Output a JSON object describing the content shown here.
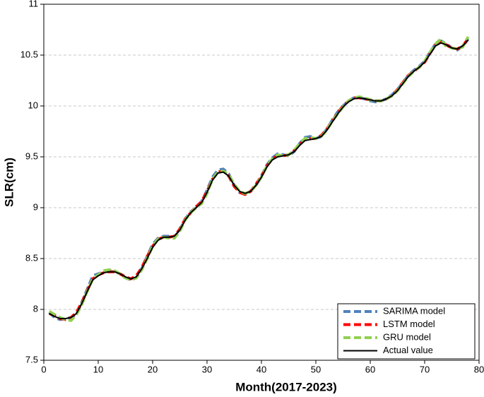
{
  "chart_data": {
    "type": "line",
    "x_label": "Month(2017-2023)",
    "y_label": "SLR(cm)",
    "x": [
      1,
      2,
      3,
      4,
      5,
      6,
      7,
      8,
      9,
      10,
      11,
      12,
      13,
      14,
      15,
      16,
      17,
      18,
      19,
      20,
      21,
      22,
      23,
      24,
      25,
      26,
      27,
      28,
      29,
      30,
      31,
      32,
      33,
      34,
      35,
      36,
      37,
      38,
      39,
      40,
      41,
      42,
      43,
      44,
      45,
      46,
      47,
      48,
      49,
      50,
      51,
      52,
      53,
      54,
      55,
      56,
      57,
      58,
      59,
      60,
      61,
      62,
      63,
      64,
      65,
      66,
      67,
      68,
      69,
      70,
      71,
      72,
      73,
      74,
      75,
      76,
      77,
      78
    ],
    "series": [
      {
        "name": "SARIMA model",
        "color": "#4f81bd",
        "dash": true,
        "values": [
          7.97,
          7.92,
          7.9,
          7.91,
          7.92,
          7.95,
          8.07,
          8.2,
          8.33,
          8.35,
          8.37,
          8.38,
          8.38,
          8.35,
          8.31,
          8.29,
          8.31,
          8.4,
          8.52,
          8.64,
          8.7,
          8.72,
          8.72,
          8.71,
          8.78,
          8.89,
          8.96,
          9.0,
          9.06,
          9.17,
          9.3,
          9.37,
          9.38,
          9.33,
          9.22,
          9.15,
          9.13,
          9.16,
          9.22,
          9.31,
          9.42,
          9.49,
          9.53,
          9.52,
          9.51,
          9.55,
          9.63,
          9.69,
          9.7,
          9.68,
          9.7,
          9.77,
          9.86,
          9.94,
          10.0,
          10.05,
          10.08,
          10.08,
          10.07,
          10.05,
          10.04,
          10.05,
          10.07,
          10.11,
          10.16,
          10.23,
          10.3,
          10.35,
          10.39,
          10.44,
          10.53,
          10.61,
          10.64,
          10.61,
          10.57,
          10.55,
          10.59,
          10.66
        ]
      },
      {
        "name": "LSTM model",
        "color": "#ff0000",
        "dash": true,
        "values": [
          7.96,
          7.94,
          7.91,
          7.9,
          7.92,
          7.97,
          8.07,
          8.19,
          8.3,
          8.34,
          8.36,
          8.37,
          8.37,
          8.35,
          8.32,
          8.3,
          8.33,
          8.41,
          8.52,
          8.62,
          8.69,
          8.71,
          8.71,
          8.72,
          8.79,
          8.89,
          8.95,
          9.01,
          9.06,
          9.16,
          9.28,
          9.35,
          9.36,
          9.31,
          9.21,
          9.15,
          9.13,
          9.16,
          9.23,
          9.31,
          9.41,
          9.48,
          9.51,
          9.51,
          9.52,
          9.56,
          9.62,
          9.67,
          9.68,
          9.68,
          9.71,
          9.77,
          9.85,
          9.93,
          10.0,
          10.05,
          10.08,
          10.08,
          10.07,
          10.06,
          10.05,
          10.05,
          10.07,
          10.1,
          10.16,
          10.23,
          10.3,
          10.34,
          10.38,
          10.43,
          10.52,
          10.6,
          10.63,
          10.6,
          10.57,
          10.56,
          10.59,
          10.66
        ]
      },
      {
        "name": "GRU model",
        "color": "#92d050",
        "dash": true,
        "values": [
          7.98,
          7.95,
          7.92,
          7.9,
          7.89,
          7.95,
          8.05,
          8.18,
          8.3,
          8.34,
          8.38,
          8.39,
          8.38,
          8.35,
          8.31,
          8.29,
          8.31,
          8.39,
          8.5,
          8.62,
          8.69,
          8.71,
          8.7,
          8.7,
          8.77,
          8.88,
          8.95,
          9.0,
          9.04,
          9.14,
          9.28,
          9.35,
          9.36,
          9.32,
          9.23,
          9.16,
          9.14,
          9.16,
          9.22,
          9.3,
          9.41,
          9.48,
          9.52,
          9.51,
          9.52,
          9.56,
          9.63,
          9.68,
          9.69,
          9.68,
          9.7,
          9.76,
          9.85,
          9.92,
          9.99,
          10.05,
          10.08,
          10.09,
          10.08,
          10.06,
          10.05,
          10.05,
          10.07,
          10.1,
          10.15,
          10.22,
          10.29,
          10.34,
          10.38,
          10.44,
          10.53,
          10.61,
          10.66,
          10.58,
          10.57,
          10.56,
          10.58,
          10.68
        ]
      },
      {
        "name": "Actual value",
        "color": "#000000",
        "dash": false,
        "values": [
          7.96,
          7.93,
          7.91,
          7.91,
          7.92,
          7.96,
          8.06,
          8.18,
          8.29,
          8.33,
          8.36,
          8.37,
          8.37,
          8.35,
          8.32,
          8.3,
          8.32,
          8.4,
          8.5,
          8.61,
          8.68,
          8.71,
          8.71,
          8.72,
          8.78,
          8.88,
          8.95,
          9.0,
          9.05,
          9.15,
          9.27,
          9.34,
          9.35,
          9.31,
          9.22,
          9.16,
          9.14,
          9.16,
          9.22,
          9.3,
          9.4,
          9.47,
          9.5,
          9.51,
          9.52,
          9.55,
          9.61,
          9.66,
          9.67,
          9.68,
          9.7,
          9.76,
          9.84,
          9.92,
          9.99,
          10.04,
          10.07,
          10.08,
          10.07,
          10.06,
          10.05,
          10.05,
          10.07,
          10.1,
          10.15,
          10.22,
          10.29,
          10.34,
          10.38,
          10.43,
          10.51,
          10.59,
          10.62,
          10.6,
          10.57,
          10.56,
          10.59,
          10.65
        ]
      }
    ],
    "xlim": [
      0,
      80
    ],
    "xticks": [
      0,
      10,
      20,
      30,
      40,
      50,
      60,
      70,
      80
    ],
    "ylim": [
      7.5,
      11
    ],
    "yticks": [
      7.5,
      8,
      8.5,
      9,
      9.5,
      10,
      10.5,
      11
    ],
    "grid": true,
    "legend": "lower right"
  }
}
